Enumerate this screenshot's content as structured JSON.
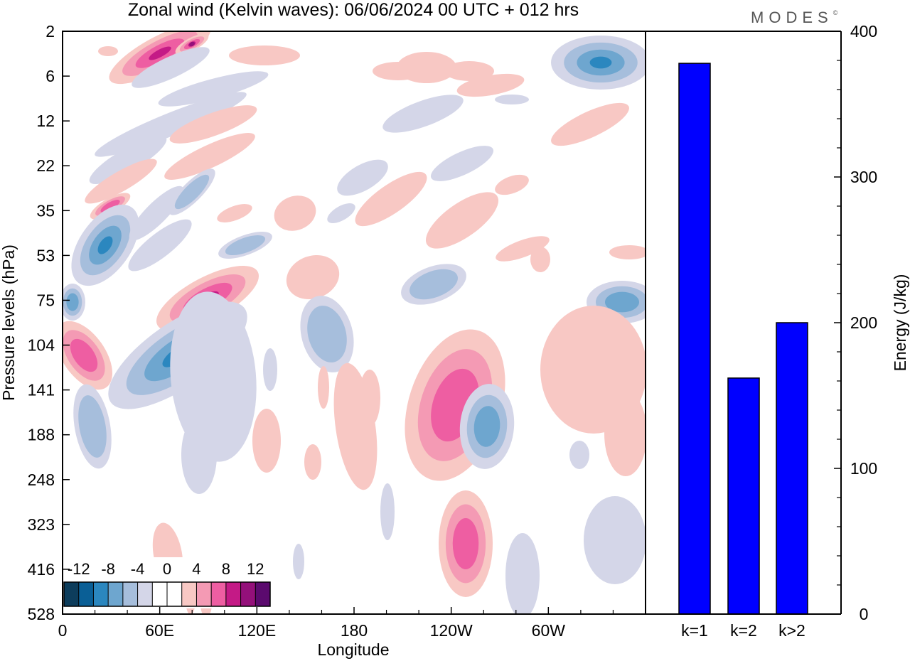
{
  "title": "Zonal wind (Kelvin waves):  06/06/2024  00 UTC  + 012 hrs",
  "logo": "MODES",
  "logo_mark": "©",
  "colors": {
    "neg": [
      "#0d3d5c",
      "#0a5f96",
      "#2b87bf",
      "#6ea6cf",
      "#a6bedc",
      "#d4d6e8"
    ],
    "pos": [
      "#f8c8c4",
      "#f49ab4",
      "#ee5ea2",
      "#c41a86",
      "#94107a",
      "#5b0a6e"
    ],
    "bar": "#0000ff"
  },
  "chart_data": [
    {
      "type": "heatmap",
      "xlabel": "Longitude",
      "ylabel": "Pressure levels (hPa)",
      "x_ticks": [
        "0",
        "60E",
        "120E",
        "180",
        "120W",
        "60W"
      ],
      "y_ticks": [
        "2",
        "6",
        "12",
        "22",
        "35",
        "53",
        "75",
        "104",
        "141",
        "188",
        "248",
        "323",
        "416",
        "528"
      ],
      "colorbar": {
        "labels": [
          "-12",
          "-8",
          "-4",
          "0",
          "4",
          "8",
          "12"
        ],
        "levels": [
          -14,
          -12,
          -10,
          -8,
          -6,
          -4,
          -2,
          2,
          4,
          6,
          8,
          10,
          12,
          14
        ]
      }
    },
    {
      "type": "bar",
      "categories": [
        "k=1",
        "k=2",
        "k>2"
      ],
      "values": [
        378,
        162,
        200
      ],
      "ylabel": "Energy (J/kg)",
      "ylim": [
        0,
        400
      ],
      "y_ticks": [
        0,
        100,
        200,
        300,
        400
      ]
    }
  ]
}
